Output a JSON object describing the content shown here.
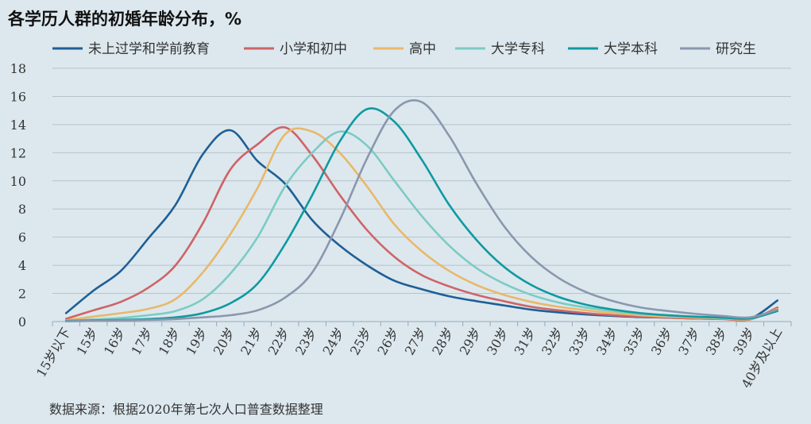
{
  "chart_data": {
    "type": "line",
    "title": "各学历人群的初婚年龄分布，%",
    "note": "数据来源：根据2020年第七次人口普查数据整理",
    "categories": [
      "15岁以下",
      "15岁",
      "16岁",
      "17岁",
      "18岁",
      "19岁",
      "20岁",
      "21岁",
      "22岁",
      "23岁",
      "24岁",
      "25岁",
      "26岁",
      "27岁",
      "28岁",
      "29岁",
      "30岁",
      "31岁",
      "32岁",
      "33岁",
      "34岁",
      "35岁",
      "36岁",
      "37岁",
      "38岁",
      "39岁",
      "40岁及以上"
    ],
    "ylim": [
      0,
      18
    ],
    "yticks": [
      0,
      2,
      4,
      6,
      8,
      10,
      12,
      14,
      16,
      18
    ],
    "grid": true,
    "legend_position": "top",
    "series": [
      {
        "name": "未上过学和学前教育",
        "color": "#1f5f95",
        "values": [
          0.6,
          2.2,
          3.6,
          5.9,
          8.3,
          11.9,
          13.6,
          11.4,
          9.8,
          7.2,
          5.4,
          4.0,
          2.9,
          2.3,
          1.8,
          1.45,
          1.15,
          0.85,
          0.65,
          0.5,
          0.4,
          0.32,
          0.28,
          0.22,
          0.2,
          0.2,
          1.5
        ]
      },
      {
        "name": "小学和初中",
        "color": "#cf6466",
        "values": [
          0.2,
          0.8,
          1.4,
          2.4,
          4.0,
          7.0,
          10.8,
          12.6,
          13.8,
          11.8,
          9.0,
          6.5,
          4.6,
          3.3,
          2.5,
          1.9,
          1.45,
          1.05,
          0.8,
          0.6,
          0.45,
          0.35,
          0.28,
          0.22,
          0.18,
          0.15,
          1.0
        ]
      },
      {
        "name": "高中",
        "color": "#e9b86a",
        "values": [
          0.1,
          0.35,
          0.6,
          0.9,
          1.6,
          3.5,
          6.2,
          9.5,
          13.3,
          13.5,
          12.0,
          9.6,
          6.9,
          5.0,
          3.6,
          2.6,
          1.9,
          1.4,
          1.05,
          0.8,
          0.6,
          0.45,
          0.35,
          0.28,
          0.22,
          0.18,
          0.9
        ]
      },
      {
        "name": "大学专科",
        "color": "#7ccbc4",
        "values": [
          0.05,
          0.15,
          0.25,
          0.45,
          0.75,
          1.6,
          3.4,
          6.0,
          9.6,
          12.0,
          13.5,
          12.5,
          10.0,
          7.5,
          5.4,
          3.8,
          2.7,
          1.9,
          1.35,
          1.0,
          0.75,
          0.55,
          0.42,
          0.32,
          0.25,
          0.2,
          0.85
        ]
      },
      {
        "name": "大学本科",
        "color": "#0f9a9f",
        "values": [
          0.05,
          0.08,
          0.12,
          0.18,
          0.3,
          0.6,
          1.3,
          2.7,
          5.5,
          9.0,
          12.8,
          15.1,
          14.2,
          11.5,
          8.3,
          5.8,
          3.9,
          2.6,
          1.75,
          1.2,
          0.85,
          0.6,
          0.45,
          0.35,
          0.28,
          0.22,
          0.75
        ]
      },
      {
        "name": "研究生",
        "color": "#8a97ad",
        "values": [
          0.02,
          0.05,
          0.08,
          0.12,
          0.18,
          0.3,
          0.45,
          0.8,
          1.7,
          3.5,
          7.2,
          11.6,
          15.0,
          15.6,
          13.2,
          9.8,
          6.8,
          4.6,
          3.1,
          2.1,
          1.45,
          1.0,
          0.75,
          0.55,
          0.4,
          0.3,
          0.85
        ]
      }
    ]
  }
}
